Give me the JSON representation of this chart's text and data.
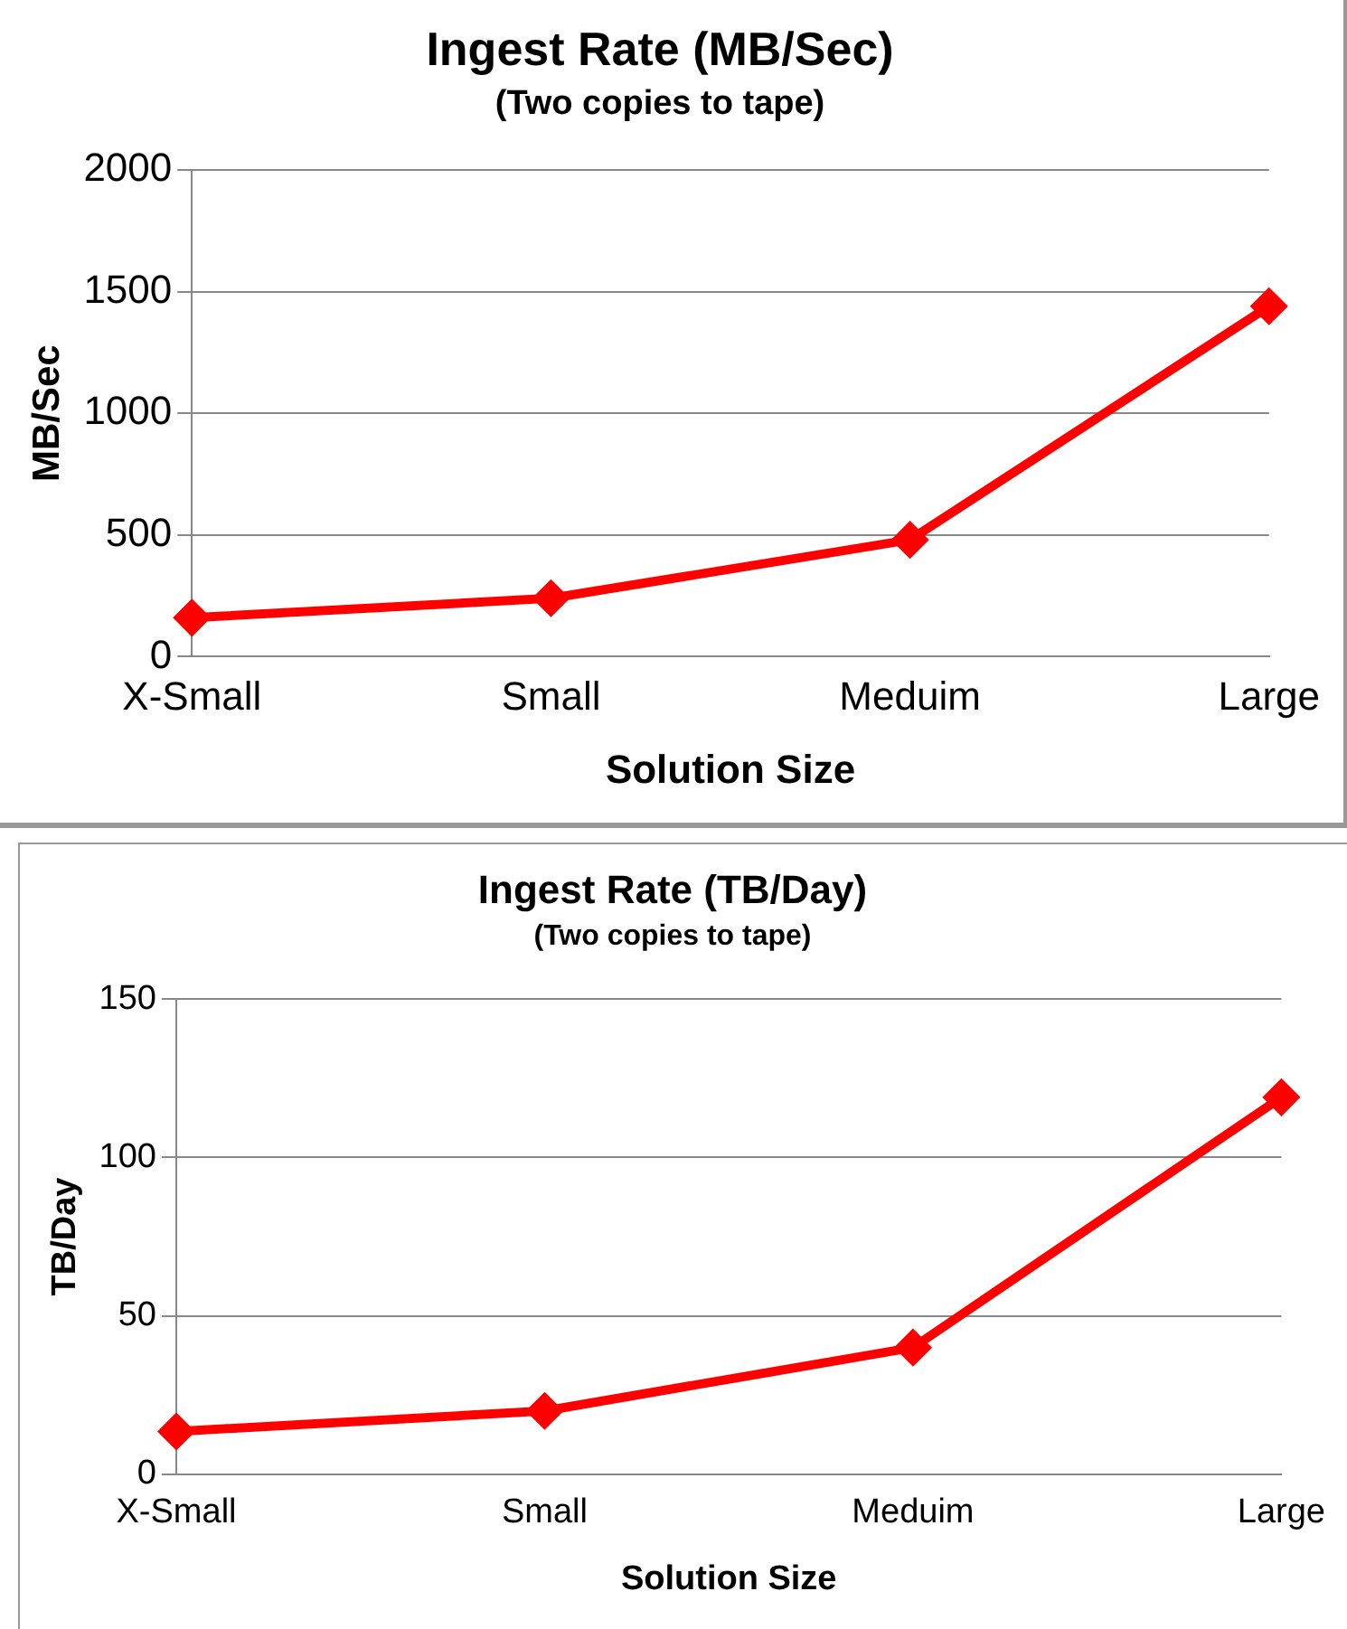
{
  "chart_data": [
    {
      "type": "line",
      "title": "Ingest Rate (MB/Sec)",
      "subtitle": "(Two copies to tape)",
      "xlabel": "Solution Size",
      "ylabel": "MB/Sec",
      "categories": [
        "X-Small",
        "Small",
        "Meduim",
        "Large"
      ],
      "series": [
        {
          "color": "#ff0000",
          "values": [
            160,
            240,
            480,
            1440
          ]
        }
      ],
      "ylim": [
        0,
        2000
      ],
      "yticks": [
        0,
        500,
        1000,
        1500,
        2000
      ],
      "grid": "y",
      "legend": false,
      "marker": "diamond",
      "line_style": "solid"
    },
    {
      "type": "line",
      "title": "Ingest Rate (TB/Day)",
      "subtitle": "(Two copies to tape)",
      "xlabel": "Solution Size",
      "ylabel": "TB/Day",
      "categories": [
        "X-Small",
        "Small",
        "Meduim",
        "Large"
      ],
      "series": [
        {
          "color": "#ff0000",
          "values": [
            13.5,
            20,
            40,
            119
          ]
        }
      ],
      "ylim": [
        0,
        150
      ],
      "yticks": [
        0,
        50,
        100,
        150
      ],
      "grid": "y",
      "legend": false,
      "marker": "diamond",
      "line_style": "solid"
    }
  ]
}
